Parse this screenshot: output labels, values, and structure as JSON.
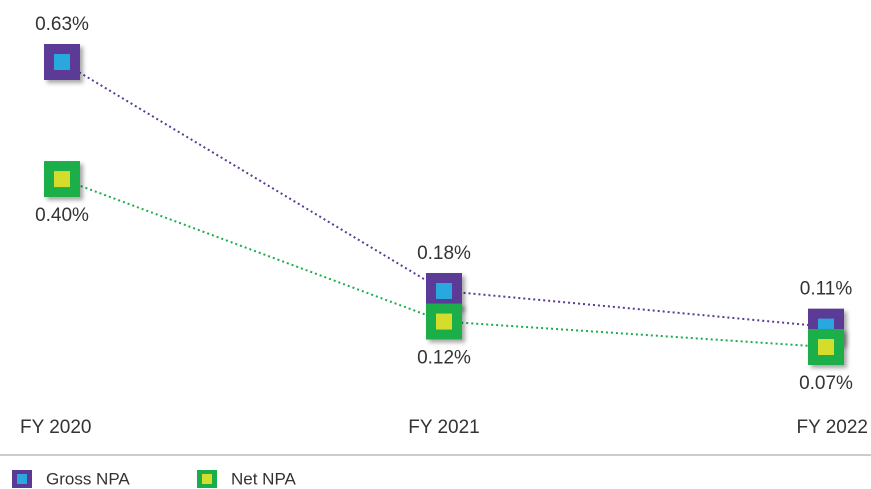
{
  "chart_data": {
    "type": "line",
    "categories": [
      "FY 2020",
      "FY 2021",
      "FY 2022"
    ],
    "series": [
      {
        "name": "Gross NPA",
        "color": "#5b3a96",
        "marker_inner_color": "#29a8e0",
        "values": [
          0.63,
          0.18,
          0.11
        ],
        "value_labels": [
          "0.63%",
          "0.18%",
          "0.11%"
        ]
      },
      {
        "name": "Net NPA",
        "color": "#1aae4a",
        "marker_inner_color": "#d4dc2c",
        "values": [
          0.4,
          0.12,
          0.07
        ],
        "value_labels": [
          "0.40%",
          "0.12%",
          "0.07%"
        ]
      }
    ],
    "legend": "bottom-left"
  }
}
